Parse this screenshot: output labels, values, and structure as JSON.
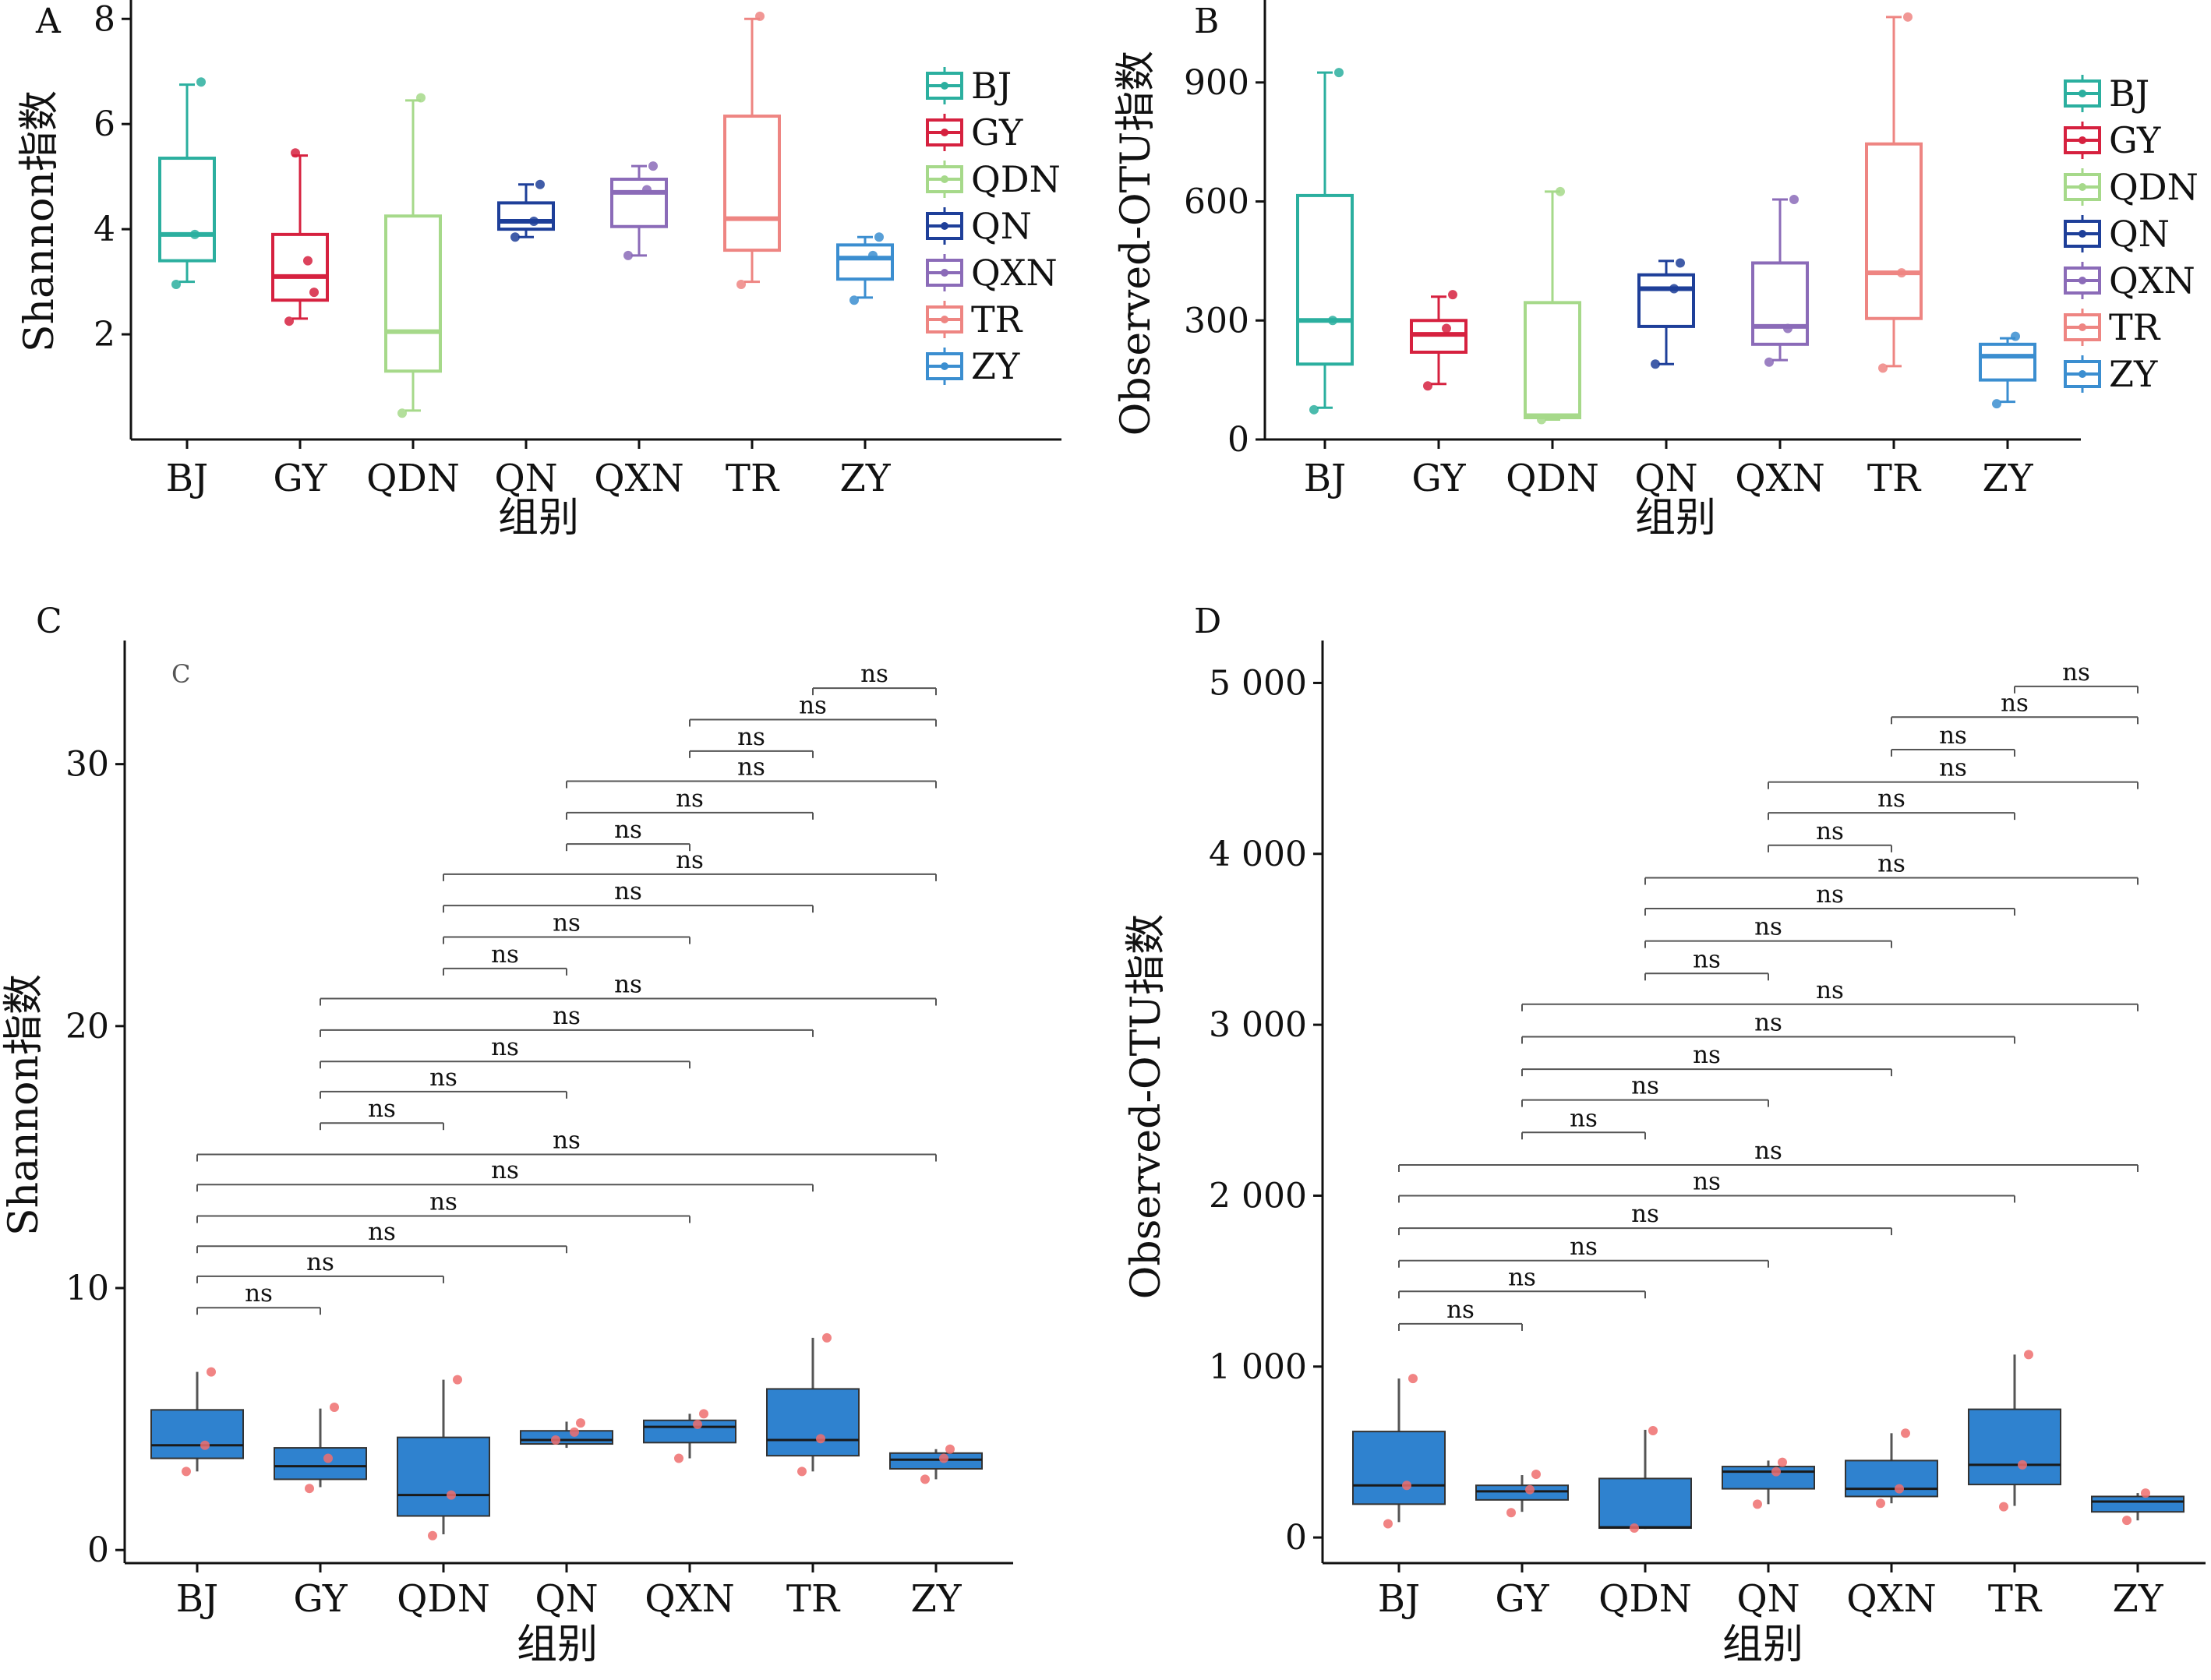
{
  "groups": [
    "BJ",
    "GY",
    "QDN",
    "QN",
    "QXN",
    "TR",
    "ZY"
  ],
  "palette": {
    "BJ": "#2BAF9F",
    "GY": "#D6213F",
    "QDN": "#A6D98A",
    "QN": "#1E3F99",
    "QXN": "#8B6BB8",
    "TR": "#EE8582",
    "ZY": "#3B8ED0",
    "fill_cd": "#2F82CF",
    "point_cd": "#EE6F6F",
    "bracket": "#555555"
  },
  "chart_data": [
    {
      "panel": "A",
      "type": "box",
      "ylabel": "Shannon指数",
      "xlabel": "组别",
      "ylim": [
        0,
        8.3
      ],
      "yticks": [
        "2",
        "4",
        "6",
        "8"
      ],
      "ytick_values": [
        2,
        4,
        6,
        8
      ],
      "legend": [
        "BJ",
        "GY",
        "QDN",
        "QN",
        "QXN",
        "TR",
        "ZY"
      ],
      "legend_position": "right",
      "boxes": [
        {
          "group": "BJ",
          "min": 3.0,
          "q1": 3.4,
          "median": 3.9,
          "q3": 5.35,
          "max": 6.75,
          "points": [
            2.95,
            3.9,
            6.8
          ]
        },
        {
          "group": "GY",
          "min": 2.3,
          "q1": 2.65,
          "median": 3.1,
          "q3": 3.9,
          "max": 5.4,
          "points": [
            2.25,
            3.4,
            2.8,
            5.45
          ]
        },
        {
          "group": "QDN",
          "min": 0.55,
          "q1": 1.3,
          "median": 2.05,
          "q3": 4.25,
          "max": 6.45,
          "points": [
            0.5,
            6.5
          ]
        },
        {
          "group": "QN",
          "min": 3.85,
          "q1": 4.0,
          "median": 4.15,
          "q3": 4.5,
          "max": 4.85,
          "points": [
            3.85,
            4.15,
            4.85
          ]
        },
        {
          "group": "QXN",
          "min": 3.5,
          "q1": 4.05,
          "median": 4.7,
          "q3": 4.95,
          "max": 5.2,
          "points": [
            3.5,
            4.75,
            5.2
          ]
        },
        {
          "group": "TR",
          "min": 3.0,
          "q1": 3.6,
          "median": 4.2,
          "q3": 6.15,
          "max": 8.0,
          "points": [
            2.95,
            8.05
          ]
        },
        {
          "group": "ZY",
          "min": 2.7,
          "q1": 3.05,
          "median": 3.45,
          "q3": 3.7,
          "max": 3.85,
          "points": [
            2.65,
            3.5,
            3.85
          ]
        }
      ]
    },
    {
      "panel": "B",
      "type": "box",
      "ylabel": "Observed-OTU指数",
      "xlabel": "组别",
      "ylim": [
        0,
        1100
      ],
      "yticks": [
        "0",
        "300",
        "600",
        "900"
      ],
      "ytick_values": [
        0,
        300,
        600,
        900
      ],
      "legend": [
        "BJ",
        "GY",
        "QDN",
        "QN",
        "QXN",
        "TR",
        "ZY"
      ],
      "legend_position": "right",
      "boxes": [
        {
          "group": "BJ",
          "min": 80,
          "q1": 190,
          "median": 300,
          "q3": 615,
          "max": 925,
          "points": [
            75,
            300,
            925
          ]
        },
        {
          "group": "GY",
          "min": 140,
          "q1": 220,
          "median": 265,
          "q3": 300,
          "max": 360,
          "points": [
            135,
            280,
            365
          ]
        },
        {
          "group": "QDN",
          "min": 50,
          "q1": 55,
          "median": 60,
          "q3": 345,
          "max": 625,
          "points": [
            50,
            625
          ]
        },
        {
          "group": "QN",
          "min": 190,
          "q1": 285,
          "median": 380,
          "q3": 415,
          "max": 450,
          "points": [
            190,
            380,
            445
          ]
        },
        {
          "group": "QXN",
          "min": 200,
          "q1": 240,
          "median": 285,
          "q3": 445,
          "max": 605,
          "points": [
            195,
            280,
            605
          ]
        },
        {
          "group": "TR",
          "min": 185,
          "q1": 305,
          "median": 420,
          "q3": 745,
          "max": 1065,
          "points": [
            180,
            420,
            1065
          ]
        },
        {
          "group": "ZY",
          "min": 95,
          "q1": 150,
          "median": 210,
          "q3": 240,
          "max": 255,
          "points": [
            90,
            260
          ]
        }
      ]
    },
    {
      "panel": "C",
      "type": "box",
      "ylabel": "Shannon指数",
      "xlabel": "组别",
      "inner_label": "C",
      "ylim": [
        -0.5,
        34.6
      ],
      "yticks": [
        "0",
        "10",
        "20",
        "30"
      ],
      "ytick_values": [
        0,
        10,
        20,
        30
      ],
      "boxes": [
        {
          "group": "BJ",
          "min": 3.0,
          "q1": 3.5,
          "median": 4.0,
          "q3": 5.35,
          "max": 6.8,
          "points": [
            3.0,
            4.0,
            6.8
          ]
        },
        {
          "group": "GY",
          "min": 2.4,
          "q1": 2.7,
          "median": 3.2,
          "q3": 3.9,
          "max": 5.4,
          "points": [
            2.35,
            3.5,
            5.45
          ]
        },
        {
          "group": "QDN",
          "min": 0.6,
          "q1": 1.3,
          "median": 2.1,
          "q3": 4.3,
          "max": 6.5,
          "points": [
            0.55,
            2.1,
            6.5
          ]
        },
        {
          "group": "QN",
          "min": 3.9,
          "q1": 4.05,
          "median": 4.2,
          "q3": 4.55,
          "max": 4.9,
          "points": [
            4.2,
            4.5,
            4.85
          ]
        },
        {
          "group": "QXN",
          "min": 3.5,
          "q1": 4.1,
          "median": 4.7,
          "q3": 4.95,
          "max": 5.2,
          "points": [
            3.5,
            4.8,
            5.2
          ]
        },
        {
          "group": "TR",
          "min": 3.0,
          "q1": 3.6,
          "median": 4.2,
          "q3": 6.15,
          "max": 8.1,
          "points": [
            3.0,
            4.25,
            8.1
          ]
        },
        {
          "group": "ZY",
          "min": 2.7,
          "q1": 3.1,
          "median": 3.45,
          "q3": 3.7,
          "max": 3.85,
          "points": [
            2.7,
            3.5,
            3.85
          ]
        }
      ],
      "comparisons": [
        {
          "from": "BJ",
          "to": "GY",
          "y": 9.25,
          "label": "ns"
        },
        {
          "from": "BJ",
          "to": "QDN",
          "y": 10.45,
          "label": "ns"
        },
        {
          "from": "BJ",
          "to": "QN",
          "y": 11.6,
          "label": "ns"
        },
        {
          "from": "BJ",
          "to": "QXN",
          "y": 12.75,
          "label": "ns"
        },
        {
          "from": "BJ",
          "to": "TR",
          "y": 13.95,
          "label": "ns"
        },
        {
          "from": "BJ",
          "to": "ZY",
          "y": 15.1,
          "label": "ns"
        },
        {
          "from": "GY",
          "to": "QDN",
          "y": 16.3,
          "label": "ns"
        },
        {
          "from": "GY",
          "to": "QN",
          "y": 17.5,
          "label": "ns"
        },
        {
          "from": "GY",
          "to": "QXN",
          "y": 18.65,
          "label": "ns"
        },
        {
          "from": "GY",
          "to": "TR",
          "y": 19.85,
          "label": "ns"
        },
        {
          "from": "GY",
          "to": "ZY",
          "y": 21.05,
          "label": "ns"
        },
        {
          "from": "QDN",
          "to": "QN",
          "y": 22.2,
          "label": "ns"
        },
        {
          "from": "QDN",
          "to": "QXN",
          "y": 23.4,
          "label": "ns"
        },
        {
          "from": "QDN",
          "to": "TR",
          "y": 24.6,
          "label": "ns"
        },
        {
          "from": "QDN",
          "to": "ZY",
          "y": 25.8,
          "label": "ns"
        },
        {
          "from": "QN",
          "to": "QXN",
          "y": 26.95,
          "label": "ns"
        },
        {
          "from": "QN",
          "to": "TR",
          "y": 28.15,
          "label": "ns"
        },
        {
          "from": "QN",
          "to": "ZY",
          "y": 29.35,
          "label": "ns"
        },
        {
          "from": "QXN",
          "to": "TR",
          "y": 30.5,
          "label": "ns"
        },
        {
          "from": "QXN",
          "to": "ZY",
          "y": 31.7,
          "label": "ns"
        },
        {
          "from": "TR",
          "to": "ZY",
          "y": 32.9,
          "label": "ns"
        }
      ]
    },
    {
      "panel": "D",
      "type": "box",
      "ylabel": "Observed-OTU指数",
      "xlabel": "组别",
      "ylim": [
        -150,
        5230
      ],
      "yticks": [
        "0",
        "1 000",
        "2 000",
        "3 000",
        "4 000",
        "5 000"
      ],
      "ytick_values": [
        0,
        1000,
        2000,
        3000,
        4000,
        5000
      ],
      "boxes": [
        {
          "group": "BJ",
          "min": 90,
          "q1": 195,
          "median": 305,
          "q3": 620,
          "max": 930,
          "points": [
            80,
            305,
            930
          ]
        },
        {
          "group": "GY",
          "min": 150,
          "q1": 220,
          "median": 270,
          "q3": 305,
          "max": 365,
          "points": [
            145,
            280,
            370
          ]
        },
        {
          "group": "QDN",
          "min": 50,
          "q1": 55,
          "median": 60,
          "q3": 345,
          "max": 630,
          "points": [
            55,
            625
          ]
        },
        {
          "group": "QN",
          "min": 195,
          "q1": 285,
          "median": 385,
          "q3": 415,
          "max": 450,
          "points": [
            195,
            385,
            440
          ]
        },
        {
          "group": "QXN",
          "min": 200,
          "q1": 240,
          "median": 285,
          "q3": 450,
          "max": 610,
          "points": [
            200,
            285,
            610
          ]
        },
        {
          "group": "TR",
          "min": 185,
          "q1": 310,
          "median": 425,
          "q3": 750,
          "max": 1070,
          "points": [
            180,
            425,
            1070
          ]
        },
        {
          "group": "ZY",
          "min": 100,
          "q1": 150,
          "median": 210,
          "q3": 240,
          "max": 260,
          "points": [
            100,
            260
          ]
        }
      ],
      "comparisons": [
        {
          "from": "BJ",
          "to": "GY",
          "y": 1250,
          "label": "ns"
        },
        {
          "from": "BJ",
          "to": "QDN",
          "y": 1440,
          "label": "ns"
        },
        {
          "from": "BJ",
          "to": "QN",
          "y": 1620,
          "label": "ns"
        },
        {
          "from": "BJ",
          "to": "QXN",
          "y": 1810,
          "label": "ns"
        },
        {
          "from": "BJ",
          "to": "TR",
          "y": 2000,
          "label": "ns"
        },
        {
          "from": "BJ",
          "to": "ZY",
          "y": 2180,
          "label": "ns"
        },
        {
          "from": "GY",
          "to": "QDN",
          "y": 2370,
          "label": "ns"
        },
        {
          "from": "GY",
          "to": "QN",
          "y": 2560,
          "label": "ns"
        },
        {
          "from": "GY",
          "to": "QXN",
          "y": 2740,
          "label": "ns"
        },
        {
          "from": "GY",
          "to": "TR",
          "y": 2930,
          "label": "ns"
        },
        {
          "from": "GY",
          "to": "ZY",
          "y": 3120,
          "label": "ns"
        },
        {
          "from": "QDN",
          "to": "QN",
          "y": 3300,
          "label": "ns"
        },
        {
          "from": "QDN",
          "to": "QXN",
          "y": 3490,
          "label": "ns"
        },
        {
          "from": "QDN",
          "to": "TR",
          "y": 3680,
          "label": "ns"
        },
        {
          "from": "QDN",
          "to": "ZY",
          "y": 3860,
          "label": "ns"
        },
        {
          "from": "QN",
          "to": "QXN",
          "y": 4050,
          "label": "ns"
        },
        {
          "from": "QN",
          "to": "TR",
          "y": 4240,
          "label": "ns"
        },
        {
          "from": "QN",
          "to": "ZY",
          "y": 4420,
          "label": "ns"
        },
        {
          "from": "QXN",
          "to": "TR",
          "y": 4610,
          "label": "ns"
        },
        {
          "from": "QXN",
          "to": "ZY",
          "y": 4800,
          "label": "ns"
        },
        {
          "from": "TR",
          "to": "ZY",
          "y": 4980,
          "label": "ns"
        }
      ]
    }
  ]
}
